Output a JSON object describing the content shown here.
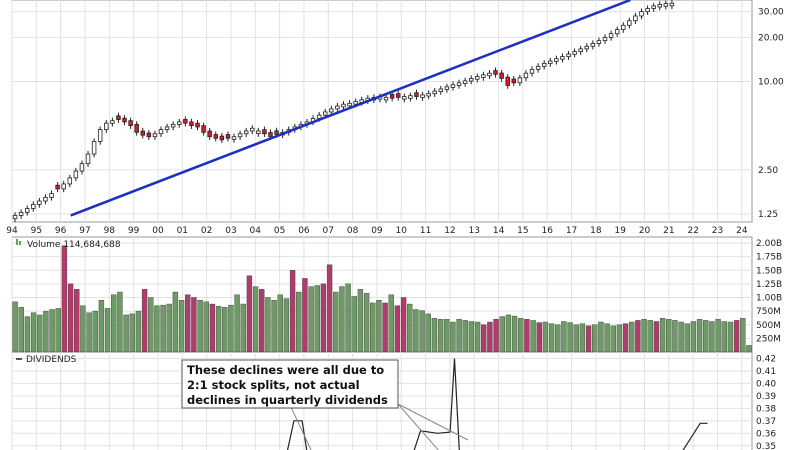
{
  "chart_data": [
    {
      "type": "candlestick",
      "panel": "price",
      "y_scale": "log",
      "ylim": [
        1.1,
        36
      ],
      "y_ticks": [
        "30.00",
        "20.00",
        "10.00",
        "2.50",
        "1.25"
      ],
      "x_tick_labels": [
        "94",
        "95",
        "96",
        "97",
        "98",
        "99",
        "00",
        "01",
        "02",
        "03",
        "04",
        "05",
        "06",
        "07",
        "08",
        "09",
        "10",
        "11",
        "12",
        "13",
        "14",
        "15",
        "16",
        "17",
        "18",
        "19",
        "20",
        "21",
        "22",
        "23",
        "24"
      ],
      "x_range": [
        "1994-01",
        "2024-06"
      ],
      "grid": true,
      "colors": {
        "up": "#ffffff",
        "down": "#d9182a",
        "trendline": "#1c2fc2"
      },
      "trendline": {
        "start": {
          "date": "1996-06",
          "value": 1.22
        },
        "end": {
          "date": "2019-06",
          "value": 36
        }
      },
      "candles": {
        "interval": "quarter",
        "start": "1994-Q1",
        "end": "2014-Q3",
        "close": [
          1.22,
          1.28,
          1.36,
          1.45,
          1.53,
          1.62,
          1.72,
          1.85,
          2.0,
          2.2,
          2.45,
          2.75,
          3.2,
          3.9,
          4.7,
          5.2,
          5.4,
          5.5,
          5.3,
          5.0,
          4.5,
          4.3,
          4.2,
          4.4,
          4.7,
          4.9,
          5.1,
          5.3,
          5.2,
          5.0,
          4.9,
          4.5,
          4.2,
          4.1,
          4.0,
          4.1,
          4.2,
          4.4,
          4.6,
          4.8,
          4.6,
          4.4,
          4.2,
          4.35,
          4.5,
          4.7,
          4.9,
          5.1,
          5.3,
          5.6,
          5.9,
          6.2,
          6.5,
          6.8,
          7.0,
          7.1,
          7.3,
          7.5,
          7.7,
          7.8,
          7.9,
          7.8,
          7.7,
          7.8,
          7.9,
          8.0,
          7.9,
          8.1,
          8.3,
          8.6,
          8.9,
          9.2,
          9.5,
          9.8,
          10.1,
          10.5,
          10.8,
          11.1,
          11.4,
          11.2,
          10.5,
          9.4,
          9.8,
          10.6,
          11.4,
          12.1,
          12.7,
          13.3,
          13.8,
          14.3,
          14.8,
          15.4,
          16.0,
          16.7,
          17.4,
          18.2,
          19.0,
          20.0,
          21.2,
          22.6,
          24.2,
          26.0,
          28.0,
          30.0,
          31.5,
          32.8,
          33.6,
          34.0,
          34.2
        ],
        "down": [
          7,
          17,
          18,
          19,
          20,
          21,
          22,
          28,
          29,
          30,
          31,
          32,
          33,
          34,
          35,
          41,
          42,
          43,
          62,
          63,
          66,
          79,
          80,
          81,
          82
        ]
      }
    },
    {
      "type": "bar",
      "panel": "volume",
      "legend": "Volume 114,684,688",
      "ylim": [
        0,
        2000000000
      ],
      "y_ticks": [
        "2.00B",
        "1.75B",
        "1.50B",
        "1.25B",
        "1.00B",
        "750M",
        "500M",
        "250M"
      ],
      "colors": {
        "up": "#6e9a66",
        "down": "#b03c6c"
      },
      "values": [
        0.92,
        0.82,
        0.65,
        0.72,
        0.68,
        0.75,
        0.78,
        0.8,
        1.95,
        1.25,
        1.15,
        0.85,
        0.72,
        0.75,
        0.95,
        0.8,
        1.05,
        1.1,
        0.68,
        0.7,
        0.75,
        1.15,
        1.0,
        0.85,
        0.86,
        0.88,
        1.1,
        0.95,
        1.05,
        1.0,
        0.95,
        0.92,
        0.88,
        0.84,
        0.82,
        0.86,
        1.05,
        0.88,
        1.4,
        1.2,
        1.15,
        1.0,
        0.95,
        1.05,
        0.98,
        1.5,
        1.1,
        1.35,
        1.2,
        1.22,
        1.25,
        1.6,
        1.1,
        1.2,
        1.25,
        1.02,
        1.15,
        1.08,
        0.9,
        0.95,
        0.9,
        1.05,
        0.85,
        1.0,
        0.88,
        0.78,
        0.76,
        0.7,
        0.62,
        0.6,
        0.6,
        0.55,
        0.6,
        0.58,
        0.56,
        0.55,
        0.5,
        0.55,
        0.6,
        0.65,
        0.68,
        0.66,
        0.62,
        0.6,
        0.58,
        0.54,
        0.55,
        0.52,
        0.5,
        0.56,
        0.54,
        0.5,
        0.52,
        0.48,
        0.5,
        0.55,
        0.52,
        0.48,
        0.5,
        0.52,
        0.55,
        0.58,
        0.6,
        0.58,
        0.56,
        0.62,
        0.6,
        0.58,
        0.55,
        0.52,
        0.56,
        0.6,
        0.58,
        0.56,
        0.6,
        0.56,
        0.55,
        0.58,
        0.62,
        0.12
      ],
      "down": [
        8,
        9,
        10,
        21,
        28,
        29,
        32,
        38,
        40,
        45,
        47,
        50,
        51,
        60,
        62,
        63,
        76,
        77,
        78,
        83,
        85,
        93,
        99,
        101,
        104,
        117
      ]
    },
    {
      "type": "line",
      "panel": "dividends",
      "legend": "DIVIDENDS",
      "ylim": [
        0.345,
        0.422
      ],
      "y_ticks": [
        "0.42",
        "0.41",
        "0.40",
        "0.39",
        "0.38",
        "0.37",
        "0.36",
        "0.35"
      ],
      "points": [
        [
          0.33,
          0.34
        ],
        [
          0.37,
          0.34
        ],
        [
          0.381,
          0.37
        ],
        [
          0.392,
          0.37
        ],
        [
          0.4,
          0.34
        ],
        [
          0.54,
          0.34
        ],
        [
          0.552,
          0.362
        ],
        [
          0.575,
          0.36
        ],
        [
          0.592,
          0.361
        ],
        [
          0.598,
          0.42
        ],
        [
          0.605,
          0.34
        ],
        [
          0.9,
          0.34
        ],
        [
          0.93,
          0.368
        ],
        [
          0.94,
          0.368
        ]
      ],
      "x_domain": [
        0,
        1
      ]
    }
  ],
  "annotation": {
    "lines": [
      "These declines were all due to",
      "2:1 stock splits, not actual",
      "declines in quarterly dividends"
    ]
  }
}
